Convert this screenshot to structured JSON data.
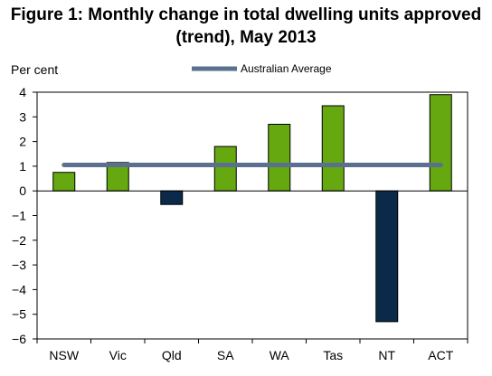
{
  "title_line1": "Figure 1: Monthly change in total dwelling units approved",
  "title_line2": "(trend), May 2013",
  "chart_data": {
    "type": "bar",
    "title": "Figure 1: Monthly change in total dwelling units approved (trend), May 2013",
    "ylabel": "Per cent",
    "xlabel": "",
    "categories": [
      "NSW",
      "Vic",
      "Qld",
      "SA",
      "WA",
      "Tas",
      "NT",
      "ACT"
    ],
    "series": [
      {
        "values": [
          0.75,
          1.15,
          -0.55,
          1.8,
          2.7,
          3.45,
          -5.3,
          3.9
        ]
      },
      {
        "name": "Australian Average",
        "type": "line",
        "values": [
          1.05,
          1.05,
          1.05,
          1.05,
          1.05,
          1.05,
          1.05,
          1.05
        ]
      }
    ],
    "ylim": [
      -6,
      4
    ],
    "yticks": [
      "4",
      "3",
      "2",
      "1",
      "0",
      "−1",
      "−2",
      "−3",
      "−4",
      "−5",
      "−6"
    ],
    "grid": false,
    "legend_position": "top-center",
    "colors": {
      "bar_positive": "#66a80f",
      "bar_negative": "#0b2a4a",
      "average_line": "#5a708f",
      "axis": "#000000"
    }
  }
}
